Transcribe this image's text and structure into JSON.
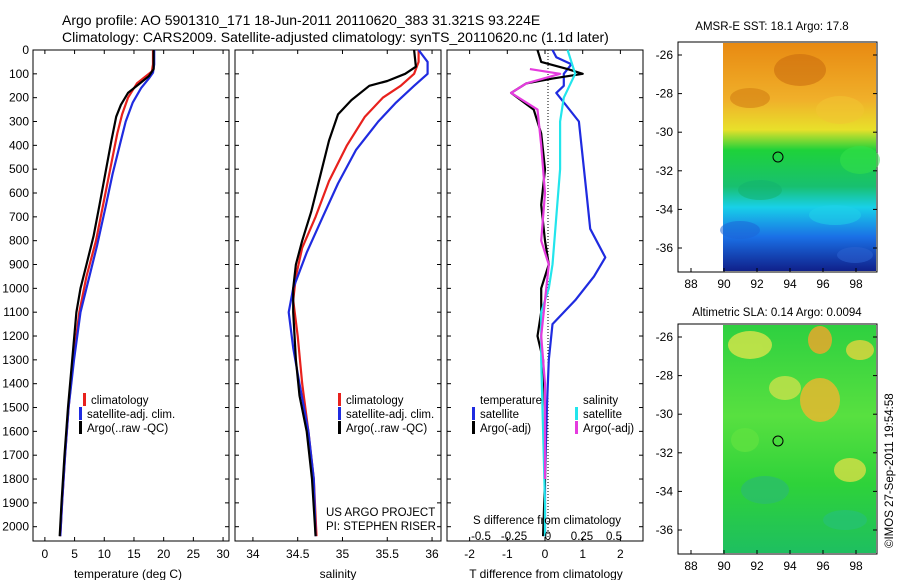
{
  "header": {
    "title_line1": "Argo profile: AO 5901310_171 18-Jun-2011 20110620_383 31.321S 93.224E",
    "title_line2": "Climatology: CARS2009. Satellite-adjusted climatology: synTS_20110620.nc (1.1d later)"
  },
  "colors": {
    "climatology": "#e8211d",
    "satellite": "#1f2be0",
    "argo": "#000000",
    "salinity_sat": "#22e5ec",
    "salinity_argo": "#e53bde"
  },
  "chart_data": [
    {
      "type": "line",
      "xlabel": "temperature (deg C)",
      "ylabel": "",
      "xlim": [
        -2,
        31
      ],
      "ylim": [
        2060,
        0
      ],
      "xticks": [
        0,
        5,
        10,
        15,
        20,
        25,
        30
      ],
      "yticks": [
        0,
        100,
        200,
        300,
        400,
        500,
        600,
        700,
        800,
        900,
        1000,
        1100,
        1200,
        1300,
        1400,
        1500,
        1600,
        1700,
        1800,
        1900,
        2000
      ],
      "legend": [
        "climatology",
        "satellite-adj. clim.",
        "Argo(..raw -QC)"
      ],
      "series": [
        {
          "name": "climatology",
          "color": "#e8211d",
          "points": [
            [
              18.2,
              0
            ],
            [
              18.2,
              60
            ],
            [
              18.0,
              90
            ],
            [
              17.0,
              110
            ],
            [
              15.5,
              140
            ],
            [
              14.0,
              200
            ],
            [
              13.0,
              270
            ],
            [
              12.2,
              350
            ],
            [
              11.0,
              500
            ],
            [
              9.8,
              650
            ],
            [
              8.6,
              800
            ],
            [
              7.0,
              950
            ],
            [
              5.8,
              1100
            ],
            [
              4.8,
              1300
            ],
            [
              4.0,
              1500
            ],
            [
              3.4,
              1700
            ],
            [
              2.9,
              1900
            ],
            [
              2.6,
              2040
            ]
          ]
        },
        {
          "name": "satellite-adj. clim.",
          "color": "#1f2be0",
          "points": [
            [
              18.4,
              0
            ],
            [
              18.4,
              60
            ],
            [
              18.2,
              95
            ],
            [
              17.5,
              120
            ],
            [
              16.2,
              160
            ],
            [
              14.8,
              220
            ],
            [
              13.6,
              300
            ],
            [
              12.6,
              400
            ],
            [
              11.4,
              520
            ],
            [
              10.2,
              660
            ],
            [
              8.8,
              820
            ],
            [
              7.3,
              970
            ],
            [
              6.0,
              1100
            ],
            [
              4.9,
              1300
            ],
            [
              4.0,
              1500
            ],
            [
              3.4,
              1700
            ],
            [
              2.9,
              1900
            ],
            [
              2.6,
              2040
            ]
          ]
        },
        {
          "name": "Argo(..raw -QC)",
          "color": "#000000",
          "points": [
            [
              18.3,
              0
            ],
            [
              18.3,
              80
            ],
            [
              17.5,
              110
            ],
            [
              16.0,
              140
            ],
            [
              14.0,
              180
            ],
            [
              12.8,
              230
            ],
            [
              12.0,
              280
            ],
            [
              11.2,
              380
            ],
            [
              10.3,
              500
            ],
            [
              9.2,
              650
            ],
            [
              8.2,
              780
            ],
            [
              7.0,
              900
            ],
            [
              6.0,
              1000
            ],
            [
              5.3,
              1100
            ],
            [
              4.6,
              1300
            ],
            [
              3.9,
              1500
            ],
            [
              3.3,
              1700
            ],
            [
              2.8,
              1900
            ],
            [
              2.5,
              2040
            ]
          ]
        }
      ]
    },
    {
      "type": "line",
      "xlabel": "salinity",
      "xlim": [
        33.8,
        36.1
      ],
      "ylim": [
        2060,
        0
      ],
      "xticks": [
        34,
        34.5,
        35,
        35.5,
        36
      ],
      "legend": [
        "climatology",
        "satellite-adj. clim.",
        "Argo(..raw -QC)"
      ],
      "annotation": [
        "US ARGO PROJECT",
        "PI: STEPHEN RISER"
      ],
      "series": [
        {
          "name": "climatology",
          "color": "#e8211d",
          "points": [
            [
              35.85,
              0
            ],
            [
              35.85,
              50
            ],
            [
              35.8,
              100
            ],
            [
              35.65,
              150
            ],
            [
              35.45,
              200
            ],
            [
              35.25,
              280
            ],
            [
              35.05,
              400
            ],
            [
              34.85,
              550
            ],
            [
              34.7,
              700
            ],
            [
              34.55,
              830
            ],
            [
              34.48,
              950
            ],
            [
              34.45,
              1050
            ],
            [
              34.5,
              1200
            ],
            [
              34.55,
              1400
            ],
            [
              34.62,
              1600
            ],
            [
              34.68,
              1800
            ],
            [
              34.71,
              2040
            ]
          ]
        },
        {
          "name": "satellite-adj. clim.",
          "color": "#1f2be0",
          "points": [
            [
              35.85,
              0
            ],
            [
              35.95,
              50
            ],
            [
              35.95,
              100
            ],
            [
              35.8,
              150
            ],
            [
              35.6,
              220
            ],
            [
              35.4,
              300
            ],
            [
              35.15,
              420
            ],
            [
              34.95,
              560
            ],
            [
              34.78,
              700
            ],
            [
              34.6,
              850
            ],
            [
              34.45,
              1000
            ],
            [
              34.4,
              1100
            ],
            [
              34.45,
              1250
            ],
            [
              34.52,
              1400
            ],
            [
              34.62,
              1600
            ],
            [
              34.68,
              1800
            ],
            [
              34.7,
              2040
            ]
          ]
        },
        {
          "name": "Argo(..raw -QC)",
          "color": "#000000",
          "points": [
            [
              35.8,
              0
            ],
            [
              35.82,
              70
            ],
            [
              35.7,
              100
            ],
            [
              35.5,
              130
            ],
            [
              35.3,
              150
            ],
            [
              35.1,
              210
            ],
            [
              34.95,
              270
            ],
            [
              34.85,
              380
            ],
            [
              34.75,
              530
            ],
            [
              34.65,
              680
            ],
            [
              34.55,
              800
            ],
            [
              34.48,
              900
            ],
            [
              34.45,
              1000
            ],
            [
              34.45,
              1100
            ],
            [
              34.48,
              1300
            ],
            [
              34.52,
              1450
            ],
            [
              34.6,
              1600
            ],
            [
              34.66,
              1800
            ],
            [
              34.7,
              2040
            ]
          ]
        }
      ]
    },
    {
      "type": "line",
      "xlabel": "T difference from climatology",
      "xlabel_top": "S difference from climatology",
      "xlim": [
        -2.6,
        2.6
      ],
      "ylim": [
        2060,
        0
      ],
      "xticks": [
        -2,
        -1,
        0,
        1,
        2
      ],
      "xticks_top": [
        "-0.5",
        "-0.25",
        "0",
        "0.25",
        "0.5"
      ],
      "legend_headers": [
        "temperature",
        "salinity"
      ],
      "legend": [
        "satellite",
        "Argo(-adj)",
        "satellite",
        "Argo(-adj)"
      ],
      "series": [
        {
          "name": "satellite",
          "color": "#1f2be0",
          "points": [
            [
              0.2,
              0
            ],
            [
              0.3,
              30
            ],
            [
              0.7,
              60
            ],
            [
              0.5,
              100
            ],
            [
              0.5,
              150
            ],
            [
              0.3,
              180
            ],
            [
              0.9,
              300
            ],
            [
              1.0,
              450
            ],
            [
              1.1,
              600
            ],
            [
              1.2,
              750
            ],
            [
              1.6,
              870
            ],
            [
              1.3,
              950
            ],
            [
              0.8,
              1050
            ],
            [
              0.2,
              1150
            ],
            [
              0.1,
              1300
            ],
            [
              0.05,
              1500
            ],
            [
              0.0,
              1800
            ],
            [
              0.0,
              2040
            ]
          ]
        },
        {
          "name": "Argo(-adj)",
          "color": "#000000",
          "points": [
            [
              -0.2,
              0
            ],
            [
              -0.1,
              50
            ],
            [
              0.6,
              80
            ],
            [
              1.0,
              100
            ],
            [
              0.2,
              120
            ],
            [
              -0.5,
              140
            ],
            [
              -0.9,
              180
            ],
            [
              -0.3,
              250
            ],
            [
              -0.1,
              350
            ],
            [
              0.0,
              500
            ],
            [
              -0.1,
              650
            ],
            [
              0.0,
              800
            ],
            [
              0.1,
              900
            ],
            [
              -0.1,
              1000
            ],
            [
              -0.1,
              1100
            ],
            [
              -0.2,
              1200
            ],
            [
              -0.05,
              1300
            ],
            [
              0.0,
              1500
            ],
            [
              0.0,
              1800
            ],
            [
              -0.05,
              2040
            ]
          ]
        },
        {
          "name": "satellite",
          "color": "#22e5ec",
          "points": [
            [
              0.6,
              0
            ],
            [
              0.7,
              50
            ],
            [
              0.8,
              100
            ],
            [
              0.5,
              200
            ],
            [
              0.4,
              300
            ],
            [
              0.4,
              500
            ],
            [
              0.3,
              700
            ],
            [
              0.2,
              900
            ],
            [
              0.1,
              1000
            ],
            [
              -0.1,
              1100
            ],
            [
              -0.1,
              1300
            ],
            [
              -0.05,
              1600
            ],
            [
              0.0,
              1900
            ],
            [
              0.0,
              2040
            ]
          ]
        },
        {
          "name": "Argo(-adj)",
          "color": "#e53bde",
          "points": [
            [
              -0.4,
              80
            ],
            [
              0.4,
              100
            ],
            [
              -0.5,
              140
            ],
            [
              -0.9,
              180
            ],
            [
              -0.2,
              250
            ],
            [
              -0.1,
              400
            ],
            [
              0.0,
              600
            ],
            [
              -0.1,
              800
            ],
            [
              0.1,
              900
            ],
            [
              0.0,
              1050
            ],
            [
              -0.1,
              1200
            ],
            [
              0.0,
              1400
            ],
            [
              0.0,
              1800
            ]
          ]
        }
      ]
    },
    {
      "type": "heatmap",
      "title": "AMSR-E SST: 18.1 Argo: 17.8",
      "xticks": [
        88,
        90,
        92,
        94,
        96,
        98
      ],
      "yticks": [
        -26,
        -28,
        -30,
        -32,
        -34,
        -36
      ],
      "marker": [
        93.224,
        -31.321
      ]
    },
    {
      "type": "heatmap",
      "title": "Altimetric SLA: 0.14 Argo: 0.0094",
      "xticks": [
        88,
        90,
        92,
        94,
        96,
        98
      ],
      "yticks": [
        -26,
        -28,
        -30,
        -32,
        -34,
        -36
      ],
      "marker": [
        93.224,
        -31.321
      ]
    }
  ],
  "footer": {
    "timestamp": "©IMOS 27-Sep-2011 19:54:58"
  }
}
